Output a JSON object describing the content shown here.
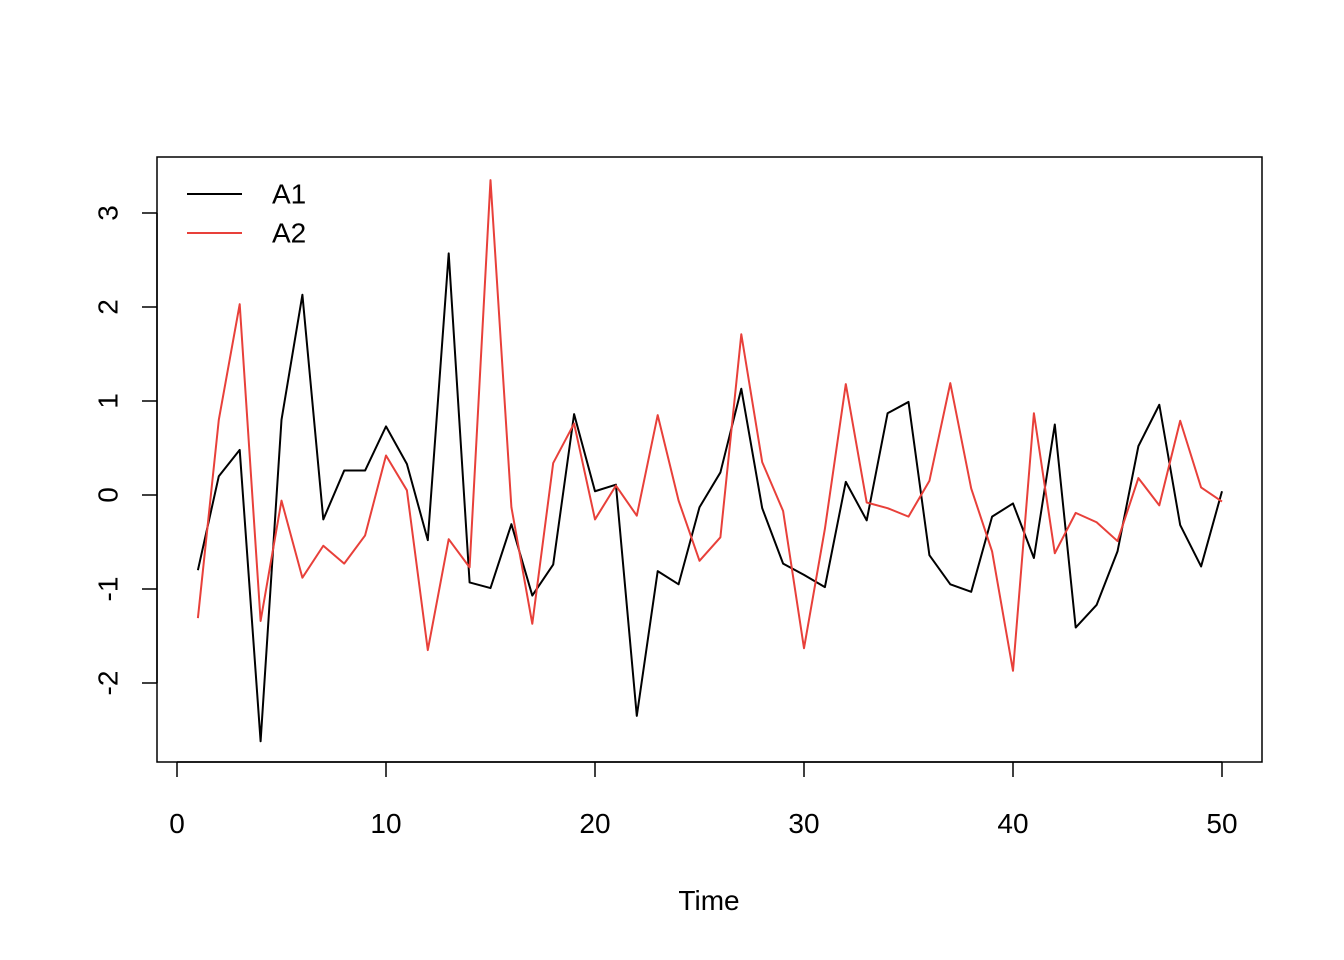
{
  "chart_data": {
    "type": "line",
    "xlabel": "Time",
    "ylabel": "",
    "xlim": [
      0,
      50
    ],
    "ylim": [
      -2.6,
      3.35
    ],
    "xticks": [
      0,
      10,
      20,
      30,
      40,
      50
    ],
    "yticks": [
      -2,
      -1,
      0,
      1,
      2,
      3
    ],
    "grid": false,
    "legend_position": "top-left",
    "x": [
      1,
      2,
      3,
      4,
      5,
      6,
      7,
      8,
      9,
      10,
      11,
      12,
      13,
      14,
      15,
      16,
      17,
      18,
      19,
      20,
      21,
      22,
      23,
      24,
      25,
      26,
      27,
      28,
      29,
      30,
      31,
      32,
      33,
      34,
      35,
      36,
      37,
      38,
      39,
      40,
      41,
      42,
      43,
      44,
      45,
      46,
      47,
      48,
      49,
      50
    ],
    "series": [
      {
        "name": "A1",
        "color": "#000000",
        "values": [
          -0.8,
          0.2,
          0.48,
          -2.62,
          0.8,
          2.13,
          -0.26,
          0.26,
          0.26,
          0.73,
          0.33,
          -0.48,
          2.57,
          -0.93,
          -0.99,
          -0.31,
          -1.07,
          -0.74,
          0.86,
          0.04,
          0.11,
          -2.35,
          -0.81,
          -0.95,
          -0.13,
          0.24,
          1.13,
          -0.14,
          -0.73,
          -0.85,
          -0.98,
          0.14,
          -0.27,
          0.87,
          0.99,
          -0.64,
          -0.95,
          -1.03,
          -0.23,
          -0.09,
          -0.67,
          0.75,
          -1.41,
          -1.17,
          -0.6,
          0.52,
          0.96,
          -0.32,
          -0.76,
          0.04
        ]
      },
      {
        "name": "A2",
        "color": "#e8403a",
        "values": [
          -1.31,
          0.8,
          2.03,
          -1.34,
          -0.06,
          -0.88,
          -0.54,
          -0.73,
          -0.43,
          0.42,
          0.05,
          -1.65,
          -0.47,
          -0.77,
          3.35,
          -0.13,
          -1.37,
          0.34,
          0.76,
          -0.26,
          0.1,
          -0.22,
          0.85,
          -0.06,
          -0.7,
          -0.45,
          1.71,
          0.35,
          -0.17,
          -1.63,
          -0.36,
          1.18,
          -0.08,
          -0.14,
          -0.23,
          0.15,
          1.19,
          0.07,
          -0.6,
          -1.87,
          0.87,
          -0.62,
          -0.19,
          -0.29,
          -0.49,
          0.18,
          -0.11,
          0.79,
          0.08,
          -0.07
        ]
      }
    ]
  }
}
